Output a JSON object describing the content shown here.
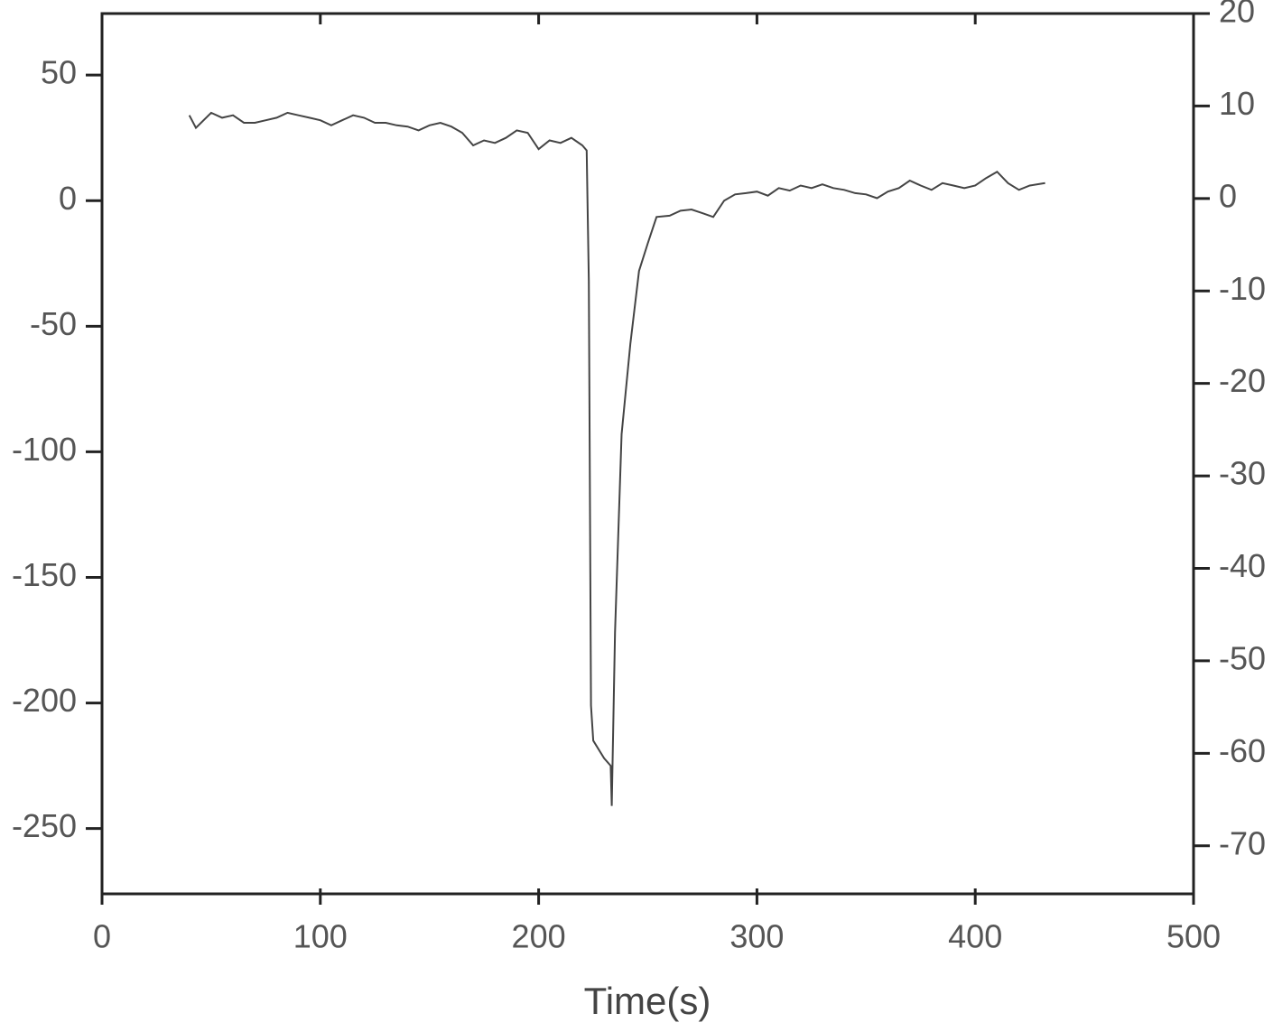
{
  "chart_data": {
    "type": "line",
    "xlabel": "Time(s)",
    "xlim": [
      0,
      500
    ],
    "xticks": [
      0,
      100,
      200,
      300,
      400,
      500
    ],
    "ylim": [
      -276,
      74.5
    ],
    "yticks": [
      50,
      0,
      -50,
      -100,
      -150,
      -200,
      -250
    ],
    "y2lim": [
      -75.2,
      20
    ],
    "y2ticks": [
      20,
      10,
      0,
      -10,
      -20,
      -30,
      -40,
      -50,
      -60,
      -70
    ],
    "series": [
      {
        "color": "#444444",
        "x": [
          40,
          43,
          50,
          55,
          60,
          65,
          70,
          75,
          80,
          85,
          90,
          95,
          100,
          105,
          110,
          115,
          120,
          125,
          130,
          135,
          140,
          145,
          150,
          155,
          160,
          165,
          170,
          175,
          180,
          185,
          190,
          195,
          200,
          205,
          210,
          215,
          220,
          222,
          223,
          224,
          225,
          230,
          233,
          233.5,
          235,
          238,
          242,
          246,
          250,
          254,
          260,
          265,
          270,
          275,
          280,
          285,
          290,
          295,
          300,
          305,
          310,
          315,
          320,
          325,
          330,
          335,
          340,
          345,
          350,
          355,
          360,
          365,
          370,
          375,
          380,
          385,
          390,
          395,
          400,
          405,
          410,
          415,
          420,
          425,
          432
        ],
        "values": [
          34,
          29,
          35,
          33,
          34,
          31,
          31,
          32,
          33,
          35,
          34,
          33,
          32,
          30,
          32,
          34,
          33,
          31,
          31,
          30,
          29.5,
          28,
          30,
          31,
          29.5,
          27,
          22,
          24,
          23,
          25,
          28,
          27,
          20.5,
          24,
          23,
          25,
          22,
          20,
          -32,
          -201,
          -215,
          -222,
          -225,
          -241,
          -172,
          -93,
          -57,
          -28,
          -17,
          -6.5,
          -6,
          -4,
          -3.5,
          -5,
          -6.5,
          0,
          2.5,
          3,
          3.6,
          2,
          5,
          4,
          6,
          5,
          6.5,
          5,
          4.3,
          3,
          2.5,
          1,
          3.6,
          5,
          8,
          6,
          4.3,
          7,
          6,
          5,
          6,
          9,
          11.5,
          7,
          4.3,
          6,
          7
        ]
      }
    ]
  }
}
